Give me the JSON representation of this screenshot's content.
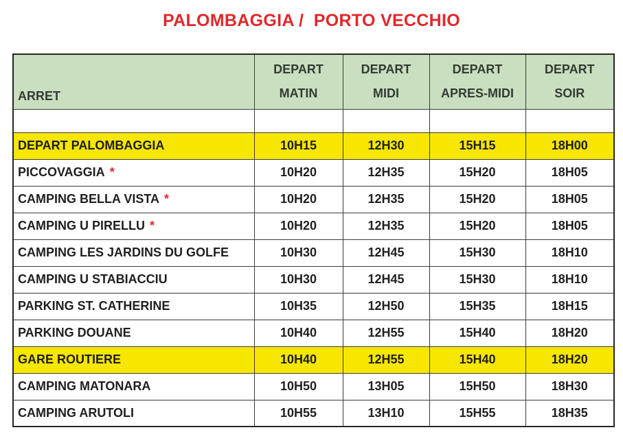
{
  "title": "PALOMBAGGIA /  PORTO VECCHIO",
  "table": {
    "asterisk_symbol": "*",
    "columns": [
      {
        "top": "",
        "bottom": "ARRET"
      },
      {
        "top": "DEPART",
        "bottom": "MATIN"
      },
      {
        "top": "DEPART",
        "bottom": "MIDI"
      },
      {
        "top": "DEPART",
        "bottom": "APRES-MIDI"
      },
      {
        "top": "DEPART",
        "bottom": "SOIR"
      }
    ],
    "rows": [
      {
        "stop": "",
        "asterisk": false,
        "highlight": false,
        "spacer": true,
        "times": [
          "",
          "",
          "",
          ""
        ]
      },
      {
        "stop": "DEPART PALOMBAGGIA",
        "asterisk": false,
        "highlight": true,
        "spacer": false,
        "times": [
          "10H15",
          "12H30",
          "15H15",
          "18H00"
        ]
      },
      {
        "stop": "PICCOVAGGIA",
        "asterisk": true,
        "highlight": false,
        "spacer": false,
        "times": [
          "10H20",
          "12H35",
          "15H20",
          "18H05"
        ]
      },
      {
        "stop": "CAMPING BELLA VISTA",
        "asterisk": true,
        "highlight": false,
        "spacer": false,
        "times": [
          "10H20",
          "12H35",
          "15H20",
          "18H05"
        ]
      },
      {
        "stop": "CAMPING U PIRELLU",
        "asterisk": true,
        "highlight": false,
        "spacer": false,
        "times": [
          "10H20",
          "12H35",
          "15H20",
          "18H05"
        ]
      },
      {
        "stop": "CAMPING LES JARDINS DU GOLFE",
        "asterisk": false,
        "highlight": false,
        "spacer": false,
        "times": [
          "10H30",
          "12H45",
          "15H30",
          "18H10"
        ]
      },
      {
        "stop": "CAMPING U STABIACCIU",
        "asterisk": false,
        "highlight": false,
        "spacer": false,
        "times": [
          "10H30",
          "12H45",
          "15H30",
          "18H10"
        ]
      },
      {
        "stop": "PARKING ST. CATHERINE",
        "asterisk": false,
        "highlight": false,
        "spacer": false,
        "times": [
          "10H35",
          "12H50",
          "15H35",
          "18H15"
        ]
      },
      {
        "stop": "PARKING DOUANE",
        "asterisk": false,
        "highlight": false,
        "spacer": false,
        "times": [
          "10H40",
          "12H55",
          "15H40",
          "18H20"
        ]
      },
      {
        "stop": "GARE ROUTIERE",
        "asterisk": false,
        "highlight": true,
        "spacer": false,
        "times": [
          "10H40",
          "12H55",
          "15H40",
          "18H20"
        ]
      },
      {
        "stop": "CAMPING MATONARA",
        "asterisk": false,
        "highlight": false,
        "spacer": false,
        "times": [
          "10H50",
          "13H05",
          "15H50",
          "18H30"
        ]
      },
      {
        "stop": "CAMPING ARUTOLI",
        "asterisk": false,
        "highlight": false,
        "spacer": false,
        "times": [
          "10H55",
          "13H10",
          "15H55",
          "18H35"
        ]
      }
    ]
  },
  "colors": {
    "title_red": "#E4262B",
    "header_green": "#C9DFC0",
    "highlight_yellow": "#F7E600",
    "border": "#3A3A3A",
    "text": "#1F1F1F"
  }
}
